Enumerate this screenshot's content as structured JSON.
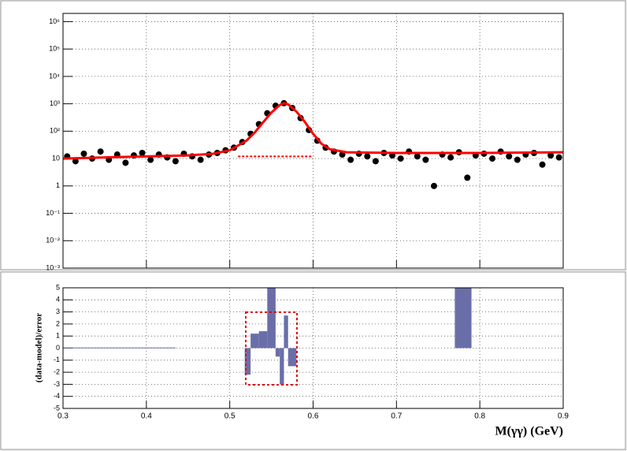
{
  "chart_data": [
    {
      "type": "scatter",
      "log_y": true,
      "grid": true,
      "xlim": [
        0.3,
        0.9
      ],
      "ylim": [
        0.001,
        2000000
      ],
      "yticks": [
        {
          "value": 0.001,
          "label": "10⁻³"
        },
        {
          "value": 0.01,
          "label": "10⁻²"
        },
        {
          "value": 0.1,
          "label": "10⁻¹"
        },
        1,
        10,
        {
          "value": 100,
          "label": "10²"
        },
        {
          "value": 1000,
          "label": "10³"
        },
        {
          "value": 10000,
          "label": "10⁴"
        },
        {
          "value": 100000,
          "label": "10⁵"
        },
        {
          "value": 1000000,
          "label": "10⁶"
        }
      ],
      "xticks": [
        0.3,
        0.4,
        0.5,
        0.6,
        0.7,
        0.8,
        0.9
      ],
      "series": [
        {
          "name": "data",
          "color": "#000000",
          "x": [
            0.305,
            0.315,
            0.325,
            0.335,
            0.345,
            0.355,
            0.365,
            0.375,
            0.385,
            0.395,
            0.405,
            0.415,
            0.425,
            0.435,
            0.445,
            0.455,
            0.465,
            0.475,
            0.485,
            0.495,
            0.505,
            0.515,
            0.525,
            0.535,
            0.545,
            0.555,
            0.565,
            0.575,
            0.585,
            0.595,
            0.605,
            0.615,
            0.625,
            0.635,
            0.645,
            0.655,
            0.665,
            0.675,
            0.685,
            0.695,
            0.705,
            0.715,
            0.725,
            0.735,
            0.745,
            0.755,
            0.765,
            0.775,
            0.785,
            0.795,
            0.805,
            0.815,
            0.825,
            0.835,
            0.845,
            0.855,
            0.865,
            0.875,
            0.885,
            0.895
          ],
          "values": [
            12,
            8,
            15,
            10,
            18,
            9,
            14,
            7,
            13,
            16,
            9,
            14,
            11,
            8,
            15,
            12,
            9,
            14,
            16,
            20,
            25,
            40,
            80,
            180,
            450,
            850,
            1050,
            700,
            300,
            110,
            45,
            25,
            18,
            14,
            9,
            15,
            12,
            8,
            16,
            13,
            10,
            18,
            12,
            9,
            1,
            14,
            11,
            17,
            2,
            13,
            15,
            10,
            18,
            12,
            9,
            14,
            16,
            6,
            13,
            11
          ]
        },
        {
          "name": "model",
          "color": "#ff0000",
          "x": [
            0.3,
            0.35,
            0.4,
            0.45,
            0.48,
            0.5,
            0.52,
            0.53,
            0.54,
            0.55,
            0.56,
            0.565,
            0.57,
            0.58,
            0.59,
            0.6,
            0.61,
            0.62,
            0.64,
            0.7,
            0.8,
            0.9
          ],
          "values": [
            10,
            11,
            12,
            13,
            15,
            20,
            45,
            90,
            210,
            480,
            900,
            1050,
            950,
            520,
            220,
            80,
            35,
            22,
            17,
            16,
            16,
            17
          ]
        },
        {
          "name": "background",
          "color": "#ff0000",
          "dashed": true,
          "x": [
            0.51,
            0.6
          ],
          "values": [
            12,
            12
          ]
        }
      ]
    },
    {
      "type": "bar",
      "grid": true,
      "color": "#6a6ea8",
      "xlim": [
        0.3,
        0.9
      ],
      "ylim": [
        -5,
        5
      ],
      "xticks": [
        0.3,
        0.4,
        0.5,
        0.6,
        0.7,
        0.8,
        0.9
      ],
      "yticks": [
        -5,
        -4,
        -3,
        -2,
        -1,
        0,
        1,
        2,
        3,
        4,
        5
      ],
      "y_label": "(data-model)/error",
      "x_label": "M(γγ) (GeV)",
      "x_start": [
        0.3,
        0.518,
        0.525,
        0.535,
        0.545,
        0.555,
        0.56,
        0.565,
        0.57,
        0.77
      ],
      "x_end": [
        0.435,
        0.525,
        0.535,
        0.545,
        0.555,
        0.56,
        0.565,
        0.57,
        0.58,
        0.79
      ],
      "values": [
        0.05,
        -2.2,
        1.2,
        1.4,
        5,
        -0.7,
        -3,
        2.7,
        -1.5,
        5
      ]
    }
  ]
}
